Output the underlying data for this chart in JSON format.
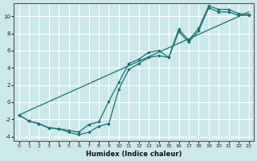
{
  "xlabel": "Humidex (Indice chaleur)",
  "background_color": "#cce8e8",
  "grid_color": "#ffffff",
  "line_color": "#1a7070",
  "xlim": [
    -0.5,
    23.5
  ],
  "ylim": [
    -4.5,
    11.5
  ],
  "xticks": [
    0,
    1,
    2,
    3,
    4,
    5,
    6,
    7,
    8,
    9,
    10,
    11,
    12,
    13,
    14,
    15,
    16,
    17,
    18,
    19,
    20,
    21,
    22,
    23
  ],
  "yticks": [
    -4,
    -2,
    0,
    2,
    4,
    6,
    8,
    10
  ],
  "straight_line": {
    "x": [
      0,
      23
    ],
    "y": [
      -1.5,
      10.5
    ]
  },
  "wavy_line1": {
    "x": [
      0,
      1,
      2,
      3,
      4,
      5,
      6,
      7,
      8,
      9,
      10,
      11,
      12,
      13,
      14,
      15,
      16,
      17,
      18,
      19,
      20,
      21,
      22,
      23
    ],
    "y": [
      -1.5,
      -2.2,
      -2.5,
      -3.0,
      -3.1,
      -3.3,
      -3.5,
      -2.6,
      -2.3,
      0.1,
      2.3,
      4.5,
      5.0,
      5.8,
      6.0,
      5.2,
      8.5,
      7.2,
      8.6,
      11.2,
      10.8,
      10.8,
      10.3,
      10.2
    ]
  },
  "wavy_line2": {
    "x": [
      0,
      1,
      2,
      3,
      4,
      5,
      6,
      7,
      8,
      9,
      10,
      11,
      12,
      13,
      14,
      15,
      16,
      17,
      18,
      19,
      20,
      21,
      22,
      23
    ],
    "y": [
      -1.5,
      -2.2,
      -2.5,
      -3.0,
      -3.1,
      -3.5,
      -3.8,
      -3.5,
      -2.8,
      -2.5,
      1.5,
      3.8,
      4.5,
      5.2,
      5.4,
      5.2,
      8.2,
      7.0,
      8.3,
      11.0,
      10.5,
      10.5,
      10.1,
      10.1
    ]
  }
}
